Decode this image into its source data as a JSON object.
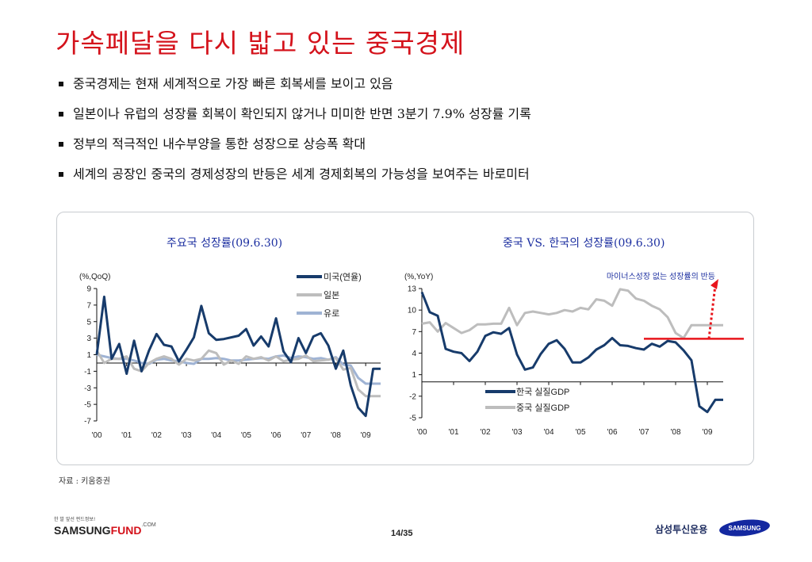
{
  "title": "가속페달을 다시 밟고 있는 중국경제",
  "bullets": [
    "중국경제는 현재 세계적으로 가장 빠른 회복세를 보이고 있음",
    "일본이나 유럽의 성장률 회복이 확인되지 않거나 미미한 반면 3분기 7.9% 성장률 기록",
    "정부의 적극적인 내수부양을 통한 성장으로 상승폭 확대",
    "세계의 공장인 중국의 경제성장의 반등은 세계 경제회복의 가능성을 보여주는 바로미터"
  ],
  "source": "자료 : 키움증권",
  "footer": {
    "tagline": "한 발 앞선 펀드정보!",
    "brand_a": "SAMSUNG",
    "brand_b": "FUND",
    "brand_c": ".COM",
    "page": "14/35",
    "company": "삼성투신운용",
    "samsung": "SAMSUNG"
  },
  "colors": {
    "navy": "#173b6b",
    "gray": "#bdbdbd",
    "blue": "#9fb3d4",
    "red": "#e8141b"
  },
  "chart_data": [
    {
      "type": "line",
      "title": "주요국 성장률(09.6.30)",
      "unit": "(%,QoQ)",
      "xticks": [
        "'00",
        "'01",
        "'02",
        "'03",
        "'04",
        "'05",
        "'06",
        "'07",
        "'08",
        "'09"
      ],
      "yticks": [
        9,
        7,
        5,
        3,
        1,
        -1,
        -3,
        -5,
        -7
      ],
      "ylim": [
        -7,
        9
      ],
      "xlim": [
        2000.0,
        2009.5
      ],
      "legend_position": "top-right",
      "series": [
        {
          "name": "미국(연율)",
          "color": "#173b6b",
          "x": [
            2000.0,
            2000.25,
            2000.5,
            2000.75,
            2001.0,
            2001.25,
            2001.5,
            2001.75,
            2002.0,
            2002.25,
            2002.5,
            2002.75,
            2003.0,
            2003.25,
            2003.5,
            2003.75,
            2004.0,
            2004.25,
            2004.5,
            2004.75,
            2005.0,
            2005.25,
            2005.5,
            2005.75,
            2006.0,
            2006.25,
            2006.5,
            2006.75,
            2007.0,
            2007.25,
            2007.5,
            2007.75,
            2008.0,
            2008.25,
            2008.5,
            2008.75,
            2009.0,
            2009.25,
            2009.5
          ],
          "y": [
            1.0,
            8.0,
            0.5,
            2.3,
            -1.3,
            2.7,
            -1.0,
            1.5,
            3.5,
            2.2,
            2.0,
            0.2,
            1.6,
            3.1,
            6.9,
            3.6,
            2.8,
            2.9,
            3.1,
            3.3,
            4.1,
            2.1,
            3.2,
            2.0,
            5.4,
            1.4,
            0.1,
            3.0,
            1.2,
            3.2,
            3.6,
            2.1,
            -0.7,
            1.5,
            -2.7,
            -5.4,
            -6.4,
            -0.7,
            -0.7
          ]
        },
        {
          "name": "일본",
          "color": "#bdbdbd",
          "x": [
            2000.0,
            2000.25,
            2000.5,
            2000.75,
            2001.0,
            2001.25,
            2001.5,
            2001.75,
            2002.0,
            2002.25,
            2002.5,
            2002.75,
            2003.0,
            2003.25,
            2003.5,
            2003.75,
            2004.0,
            2004.25,
            2004.5,
            2004.75,
            2005.0,
            2005.25,
            2005.5,
            2005.75,
            2006.0,
            2006.25,
            2006.5,
            2006.75,
            2007.0,
            2007.25,
            2007.5,
            2007.75,
            2008.0,
            2008.25,
            2008.5,
            2008.75,
            2009.0,
            2009.25,
            2009.5
          ],
          "y": [
            1.5,
            0.0,
            0.5,
            0.5,
            0.8,
            -0.7,
            -1.0,
            0.0,
            0.5,
            0.8,
            0.5,
            -0.2,
            0.5,
            0.3,
            0.5,
            1.5,
            1.2,
            -0.2,
            0.3,
            -0.1,
            0.8,
            0.5,
            0.7,
            0.3,
            0.8,
            0.2,
            0.4,
            0.5,
            0.9,
            0.2,
            0.3,
            0.4,
            0.6,
            -0.8,
            -0.6,
            -3.2,
            -4.0,
            -4.0,
            -4.0
          ]
        },
        {
          "name": "유로",
          "color": "#9fb3d4",
          "x": [
            2000.0,
            2000.25,
            2000.5,
            2000.75,
            2001.0,
            2001.25,
            2001.5,
            2001.75,
            2002.0,
            2002.25,
            2002.5,
            2002.75,
            2003.0,
            2003.25,
            2003.5,
            2003.75,
            2004.0,
            2004.25,
            2004.5,
            2004.75,
            2005.0,
            2005.25,
            2005.5,
            2005.75,
            2006.0,
            2006.25,
            2006.5,
            2006.75,
            2007.0,
            2007.25,
            2007.5,
            2007.75,
            2008.0,
            2008.25,
            2008.5,
            2008.75,
            2009.0,
            2009.25,
            2009.5
          ],
          "y": [
            1.0,
            0.8,
            0.6,
            0.5,
            0.5,
            0.3,
            0.0,
            -0.1,
            0.4,
            0.5,
            0.3,
            0.2,
            0.0,
            -0.1,
            0.5,
            0.5,
            0.6,
            0.5,
            0.3,
            0.3,
            0.4,
            0.5,
            0.6,
            0.5,
            0.8,
            0.9,
            0.6,
            0.8,
            0.7,
            0.5,
            0.6,
            0.4,
            0.7,
            -0.2,
            -0.3,
            -1.8,
            -2.5,
            -2.5,
            -2.5
          ]
        }
      ]
    },
    {
      "type": "line",
      "title": "중국 VS. 한국의 성장률(09.6.30)",
      "unit": "(%,YoY)",
      "xticks": [
        "'00",
        "'01",
        "'02",
        "'03",
        "'04",
        "'05",
        "'06",
        "'07",
        "'08",
        "'09"
      ],
      "yticks": [
        13,
        10,
        7,
        4,
        1,
        -2,
        -5
      ],
      "ylim": [
        -5,
        13
      ],
      "xlim": [
        2000.0,
        2009.5
      ],
      "legend_position": "bottom-center",
      "series": [
        {
          "name": "한국 실질GDP",
          "color": "#173b6b",
          "x": [
            2000.0,
            2000.25,
            2000.5,
            2000.75,
            2001.0,
            2001.25,
            2001.5,
            2001.75,
            2002.0,
            2002.25,
            2002.5,
            2002.75,
            2003.0,
            2003.25,
            2003.5,
            2003.75,
            2004.0,
            2004.25,
            2004.5,
            2004.75,
            2005.0,
            2005.25,
            2005.5,
            2005.75,
            2006.0,
            2006.25,
            2006.5,
            2006.75,
            2007.0,
            2007.25,
            2007.5,
            2007.75,
            2008.0,
            2008.25,
            2008.5,
            2008.75,
            2009.0,
            2009.25,
            2009.5
          ],
          "y": [
            12.5,
            9.7,
            9.2,
            4.6,
            4.2,
            4.0,
            2.9,
            4.2,
            6.4,
            6.9,
            6.7,
            7.5,
            3.8,
            1.7,
            2.0,
            3.9,
            5.3,
            5.8,
            4.6,
            2.7,
            2.7,
            3.4,
            4.5,
            5.1,
            6.1,
            5.1,
            5.0,
            4.7,
            4.5,
            5.3,
            4.9,
            5.7,
            5.5,
            4.4,
            3.0,
            -3.4,
            -4.2,
            -2.5,
            -2.5
          ]
        },
        {
          "name": "중국 실질GDP",
          "color": "#bdbdbd",
          "x": [
            2000.0,
            2000.25,
            2000.5,
            2000.75,
            2001.0,
            2001.25,
            2001.5,
            2001.75,
            2002.0,
            2002.25,
            2002.5,
            2002.75,
            2003.0,
            2003.25,
            2003.5,
            2003.75,
            2004.0,
            2004.25,
            2004.5,
            2004.75,
            2005.0,
            2005.25,
            2005.5,
            2005.75,
            2006.0,
            2006.25,
            2006.5,
            2006.75,
            2007.0,
            2007.25,
            2007.5,
            2007.75,
            2008.0,
            2008.25,
            2008.5,
            2008.75,
            2009.0,
            2009.25,
            2009.5
          ],
          "y": [
            8.1,
            8.3,
            7.0,
            8.2,
            7.5,
            6.8,
            7.2,
            8.0,
            8.0,
            8.1,
            8.1,
            10.3,
            7.9,
            9.6,
            9.8,
            9.6,
            9.4,
            9.6,
            10.0,
            9.8,
            10.3,
            10.1,
            11.5,
            11.3,
            10.6,
            12.9,
            12.7,
            11.6,
            11.3,
            10.6,
            10.1,
            9.0,
            6.8,
            6.1,
            7.9,
            7.9,
            7.9,
            7.9,
            7.9
          ]
        }
      ],
      "annotation": "마이너스성장 없는 성장률의 반등"
    }
  ]
}
